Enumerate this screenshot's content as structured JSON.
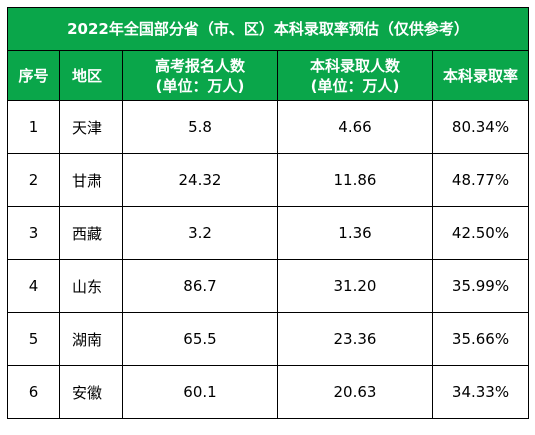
{
  "title": "2022年全国部分省（市、区）本科录取率预估（仅供参考）",
  "columns": {
    "index": "序号",
    "region": "地区",
    "applicants_line1": "高考报名人数",
    "applicants_line2": "(单位：万人)",
    "enrolled_line1": "本科录取人数",
    "enrolled_line2": "(单位：万人)",
    "rate": "本科录取率"
  },
  "rows": [
    {
      "index": "1",
      "region": "天津",
      "applicants": "5.8",
      "enrolled": "4.66",
      "rate": "80.34%"
    },
    {
      "index": "2",
      "region": "甘肃",
      "applicants": "24.32",
      "enrolled": "11.86",
      "rate": "48.77%"
    },
    {
      "index": "3",
      "region": "西藏",
      "applicants": "3.2",
      "enrolled": "1.36",
      "rate": "42.50%"
    },
    {
      "index": "4",
      "region": "山东",
      "applicants": "86.7",
      "enrolled": "31.20",
      "rate": "35.99%"
    },
    {
      "index": "5",
      "region": "湖南",
      "applicants": "65.5",
      "enrolled": "23.36",
      "rate": "35.66%"
    },
    {
      "index": "6",
      "region": "安徽",
      "applicants": "60.1",
      "enrolled": "20.63",
      "rate": "34.33%"
    }
  ],
  "colors": {
    "header_bg": "#0aa64a",
    "header_text": "#ffffff",
    "border": "#000000"
  }
}
